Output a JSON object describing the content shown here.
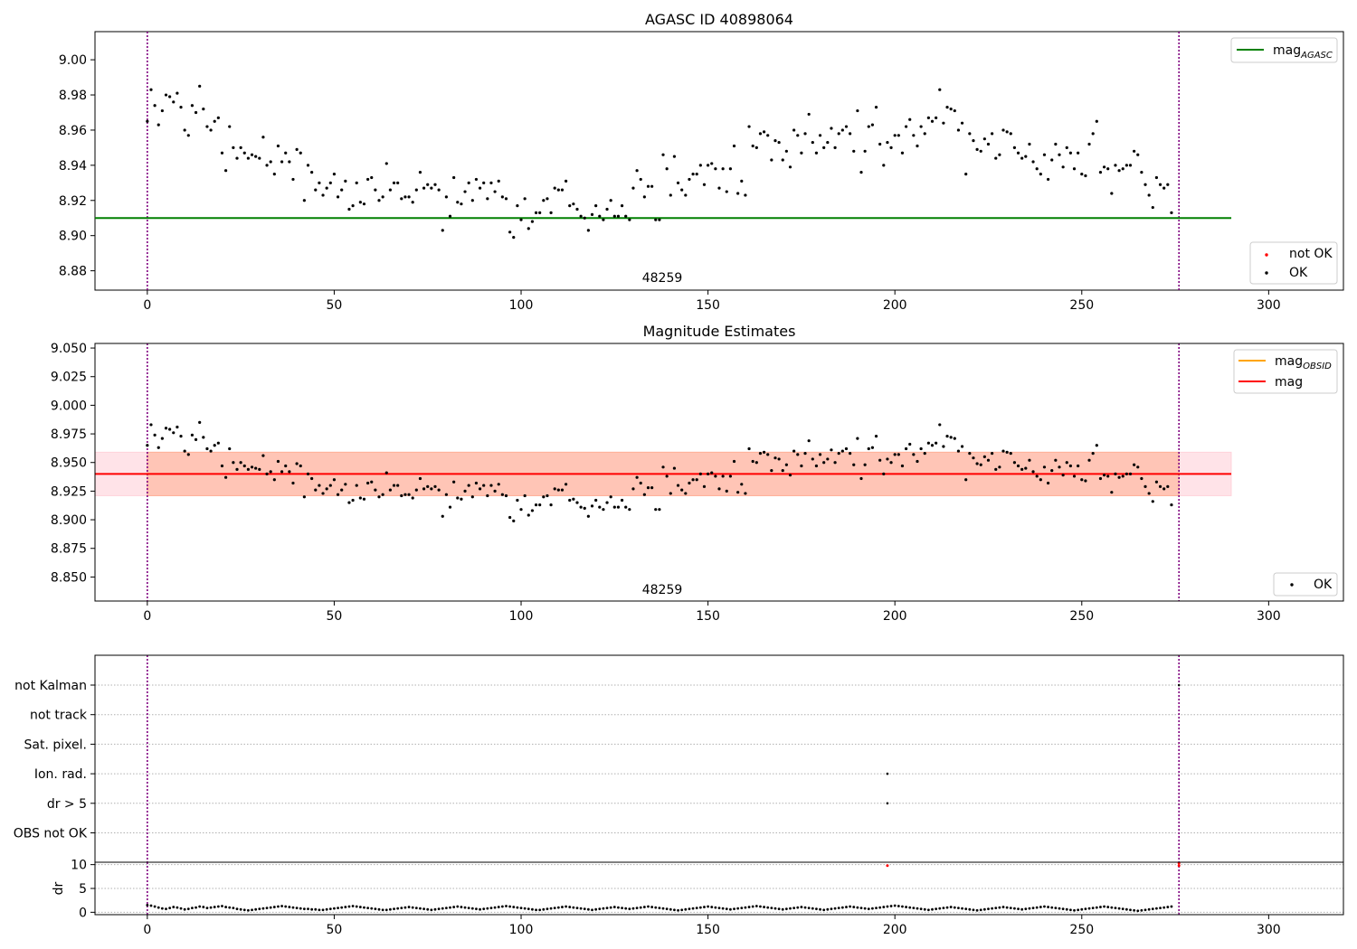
{
  "chart_data": [
    {
      "type": "scatter",
      "title": "AGASC ID 40898064",
      "xlim": [
        -14,
        320
      ],
      "ylim": [
        8.869,
        9.016
      ],
      "xticks": [
        0,
        50,
        100,
        150,
        200,
        250,
        300
      ],
      "yticks": [
        8.88,
        8.9,
        8.92,
        8.94,
        8.96,
        8.98,
        9.0
      ],
      "ytick_labels": [
        "8.88",
        "8.90",
        "8.92",
        "8.94",
        "8.96",
        "8.98",
        "9.00"
      ],
      "annotation": "48259",
      "vlines": [
        0,
        276
      ],
      "hlines": [
        {
          "name": "mag",
          "sub": "AGASC",
          "y": 8.91,
          "x_range": [
            -14,
            290
          ],
          "color": "#008000"
        }
      ],
      "legends": [
        {
          "position": "top-right",
          "entries": [
            {
              "label": "mag",
              "sub": "AGASC",
              "kind": "line",
              "color": "#008000"
            }
          ]
        },
        {
          "position": "bottom-right",
          "entries": [
            {
              "label": "not OK",
              "kind": "dot",
              "color": "#ff0000"
            },
            {
              "label": "OK",
              "kind": "dot",
              "color": "#000000"
            }
          ]
        }
      ]
    },
    {
      "type": "scatter",
      "title": "Magnitude Estimates",
      "xlim": [
        -14,
        320
      ],
      "ylim": [
        8.829,
        9.054
      ],
      "xticks": [
        0,
        50,
        100,
        150,
        200,
        250,
        300
      ],
      "yticks": [
        8.85,
        8.875,
        8.9,
        8.925,
        8.95,
        8.975,
        9.0,
        9.025,
        9.05
      ],
      "ytick_labels": [
        "8.850",
        "8.875",
        "8.900",
        "8.925",
        "8.950",
        "8.975",
        "9.000",
        "9.025",
        "9.050"
      ],
      "annotation": "48259",
      "vlines": [
        0,
        276
      ],
      "hlines": [
        {
          "name": "mag",
          "y": 8.94,
          "x_range": [
            -14,
            290
          ],
          "color": "#ff0000"
        }
      ],
      "bands": [
        {
          "y_range": [
            8.921,
            8.959
          ],
          "x_range": [
            -14,
            290
          ],
          "color": "#ffc0cb"
        },
        {
          "y_range": [
            8.921,
            8.959
          ],
          "x_range": [
            0,
            276
          ],
          "color": "#ffa07a"
        }
      ],
      "legends": [
        {
          "position": "top-right",
          "entries": [
            {
              "label": "mag",
              "sub": "OBSID",
              "kind": "line",
              "color": "#ffa500"
            },
            {
              "label": "mag",
              "kind": "line",
              "color": "#ff0000"
            }
          ]
        },
        {
          "position": "bottom-right",
          "entries": [
            {
              "label": "OK",
              "kind": "dot",
              "color": "#000000"
            }
          ]
        }
      ]
    },
    {
      "type": "scatter",
      "title": "",
      "xlim": [
        -14,
        320
      ],
      "categories": [
        "OBS not OK",
        "dr > 5",
        "Ion. rad.",
        "Sat. pixel.",
        "not track",
        "not Kalman"
      ],
      "flag_points": [
        {
          "x": 198,
          "category": "Ion. rad."
        },
        {
          "x": 198,
          "category": "dr > 5"
        },
        {
          "x": 276,
          "category": "not Kalman"
        }
      ],
      "vlines": [
        0,
        276
      ]
    },
    {
      "type": "scatter",
      "title": "",
      "ylabel": "dr",
      "xlim": [
        -14,
        320
      ],
      "ylim": [
        -0.5,
        10.5
      ],
      "xticks": [
        0,
        50,
        100,
        150,
        200,
        250,
        300
      ],
      "yticks": [
        0,
        5,
        10
      ],
      "ytick_labels": [
        "0",
        "5",
        "10"
      ],
      "vlines": [
        0,
        276
      ],
      "flagged_points": [
        {
          "x": 198,
          "y": 9.8
        },
        {
          "x": 276,
          "y": 9.8
        },
        {
          "x": 276,
          "y": 10.3
        }
      ]
    }
  ],
  "series_y": [
    8.965,
    8.983,
    8.974,
    8.963,
    8.971,
    8.98,
    8.979,
    8.976,
    8.981,
    8.973,
    8.96,
    8.957,
    8.974,
    8.97,
    8.985,
    8.972,
    8.962,
    8.96,
    8.965,
    8.967,
    8.947,
    8.937,
    8.962,
    8.95,
    8.944,
    8.95,
    8.947,
    8.944,
    8.946,
    8.945,
    8.944,
    8.956,
    8.94,
    8.942,
    8.935,
    8.951,
    8.942,
    8.947,
    8.942,
    8.932,
    8.949,
    8.947,
    8.92,
    8.94,
    8.936,
    8.926,
    8.93,
    8.923,
    8.927,
    8.93,
    8.935,
    8.922,
    8.926,
    8.931,
    8.915,
    8.917,
    8.93,
    8.919,
    8.918,
    8.932,
    8.933,
    8.926,
    8.92,
    8.922,
    8.941,
    8.926,
    8.93,
    8.93,
    8.921,
    8.922,
    8.922,
    8.919,
    8.926,
    8.936,
    8.927,
    8.929,
    8.927,
    8.929,
    8.926,
    8.903,
    8.922,
    8.911,
    8.933,
    8.919,
    8.918,
    8.925,
    8.93,
    8.92,
    8.932,
    8.927,
    8.93,
    8.921,
    8.93,
    8.925,
    8.931,
    8.922,
    8.921,
    8.902,
    8.899,
    8.917,
    8.909,
    8.921,
    8.904,
    8.908,
    8.913,
    8.913,
    8.92,
    8.921,
    8.913,
    8.927,
    8.926,
    8.926,
    8.931,
    8.917,
    8.918,
    8.915,
    8.911,
    8.91,
    8.903,
    8.912,
    8.917,
    8.911,
    8.909,
    8.915,
    8.92,
    8.911,
    8.911,
    8.917,
    8.911,
    8.909,
    8.927,
    8.937,
    8.932,
    8.922,
    8.928,
    8.928,
    8.909,
    8.909,
    8.946,
    8.938,
    8.923,
    8.945,
    8.93,
    8.926,
    8.923,
    8.932,
    8.935,
    8.935,
    8.94,
    8.929,
    8.94,
    8.941,
    8.938,
    8.927,
    8.938,
    8.925,
    8.938,
    8.951,
    8.924,
    8.931,
    8.923,
    8.962,
    8.951,
    8.95,
    8.958,
    8.959,
    8.957,
    8.943,
    8.954,
    8.953,
    8.943,
    8.948,
    8.939,
    8.96,
    8.957,
    8.947,
    8.958,
    8.969,
    8.953,
    8.947,
    8.957,
    8.95,
    8.953,
    8.961,
    8.95,
    8.958,
    8.96,
    8.962,
    8.958,
    8.948,
    8.971,
    8.936,
    8.948,
    8.962,
    8.963,
    8.973,
    8.952,
    8.94,
    8.953,
    8.95,
    8.957,
    8.957,
    8.947,
    8.962,
    8.966,
    8.957,
    8.951,
    8.962,
    8.958,
    8.967,
    8.965,
    8.967,
    8.983,
    8.964,
    8.973,
    8.972,
    8.971,
    8.96,
    8.964,
    8.935,
    8.958,
    8.954,
    8.949,
    8.948,
    8.955,
    8.952,
    8.958,
    8.944,
    8.946,
    8.96,
    8.959,
    8.958,
    8.95,
    8.947,
    8.944,
    8.945,
    8.952,
    8.942,
    8.938,
    8.935,
    8.946,
    8.932,
    8.943,
    8.952,
    8.946,
    8.939,
    8.95,
    8.947,
    8.938,
    8.947,
    8.935,
    8.934,
    8.952,
    8.958,
    8.965,
    8.936,
    8.939,
    8.938,
    8.924,
    8.94,
    8.937,
    8.938,
    8.94,
    8.94,
    8.948,
    8.946,
    8.936,
    8.929,
    8.923,
    8.916,
    8.933,
    8.929,
    8.927,
    8.929,
    8.913
  ],
  "series_dr": [
    1.5,
    1.4,
    1.2,
    1.0,
    0.8,
    0.7,
    0.9,
    1.1,
    1.0,
    0.8,
    0.6,
    0.7,
    0.9,
    1.0,
    1.2,
    1.1,
    0.9,
    1.0,
    1.1,
    1.2,
    1.3,
    1.1,
    1.0,
    0.9,
    0.7,
    0.6,
    0.5,
    0.4,
    0.5,
    0.6,
    0.7,
    0.8,
    0.9,
    1.0,
    1.1,
    1.2,
    1.3,
    1.2,
    1.1,
    1.0,
    0.9,
    0.8,
    0.7,
    0.7,
    0.6,
    0.6,
    0.5,
    0.5,
    0.6,
    0.7,
    0.8,
    0.9,
    1.0,
    1.1,
    1.2,
    1.3,
    1.2,
    1.1,
    1.0,
    0.9,
    0.8,
    0.7,
    0.6,
    0.5,
    0.5,
    0.6,
    0.7,
    0.8,
    0.9,
    1.0,
    1.1,
    1.0,
    0.9,
    0.8,
    0.7,
    0.6,
    0.5,
    0.6,
    0.7,
    0.8,
    0.9,
    1.0,
    1.1,
    1.2,
    1.1,
    1.0,
    0.9,
    0.8,
    0.7,
    0.6,
    0.7,
    0.8,
    0.9,
    1.0,
    1.1,
    1.2,
    1.3,
    1.2,
    1.1,
    1.0,
    0.9,
    0.8,
    0.7,
    0.6,
    0.5,
    0.5,
    0.6,
    0.7,
    0.8,
    0.9,
    1.0,
    1.1,
    1.2,
    1.1,
    1.0,
    0.9,
    0.8,
    0.7,
    0.6,
    0.5,
    0.6,
    0.7,
    0.8,
    0.9,
    1.0,
    1.1,
    1.0,
    0.9,
    0.8,
    0.7,
    0.8,
    0.9,
    1.0,
    1.1,
    1.2,
    1.1,
    1.0,
    0.9,
    0.8,
    0.7,
    0.6,
    0.5,
    0.4,
    0.5,
    0.6,
    0.7,
    0.8,
    0.9,
    1.0,
    1.1,
    1.2,
    1.1,
    1.0,
    0.9,
    0.8,
    0.7,
    0.6,
    0.7,
    0.8,
    0.9,
    1.0,
    1.1,
    1.2,
    1.3,
    1.2,
    1.1,
    1.0,
    0.9,
    0.8,
    0.7,
    0.6,
    0.7,
    0.8,
    0.9,
    1.0,
    1.1,
    1.0,
    0.9,
    0.8,
    0.7,
    0.6,
    0.5,
    0.6,
    0.7,
    0.8,
    0.9,
    1.0,
    1.1,
    1.2,
    1.1,
    1.0,
    0.9,
    0.8,
    0.7,
    0.8,
    0.9,
    1.0,
    1.1,
    1.2,
    1.3,
    1.4,
    1.3,
    1.2,
    1.1,
    1.0,
    0.9,
    0.8,
    0.7,
    0.6,
    0.5,
    0.6,
    0.7,
    0.8,
    0.9,
    1.0,
    1.1,
    1.0,
    0.9,
    0.8,
    0.7,
    0.6,
    0.5,
    0.4,
    0.5,
    0.6,
    0.7,
    0.8,
    0.9,
    1.0,
    1.1,
    1.0,
    0.9,
    0.8,
    0.7,
    0.6,
    0.7,
    0.8,
    0.9,
    1.0,
    1.1,
    1.2,
    1.1,
    1.0,
    0.9,
    0.8,
    0.7,
    0.6,
    0.5,
    0.4,
    0.5,
    0.6,
    0.7,
    0.8,
    0.9,
    1.0,
    1.1,
    1.2,
    1.1,
    1.0,
    0.9,
    0.8,
    0.7,
    0.6,
    0.5,
    0.4,
    0.3,
    0.4,
    0.5,
    0.6,
    0.7,
    0.8,
    0.9,
    1.0,
    1.1,
    1.2
  ]
}
